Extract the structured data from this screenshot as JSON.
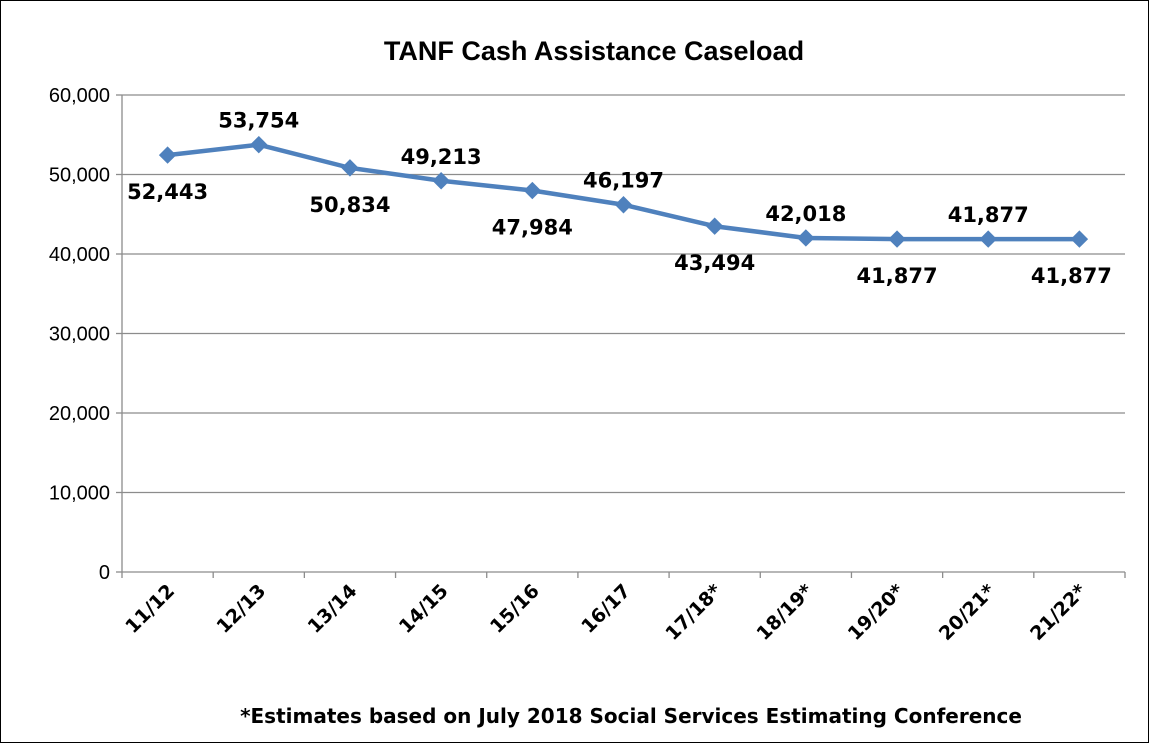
{
  "chart_data": {
    "type": "line",
    "title": "TANF Cash Assistance Caseload",
    "categories": [
      "11/12",
      "12/13",
      "13/14",
      "14/15",
      "15/16",
      "16/17",
      "17/18*",
      "18/19*",
      "19/20*",
      "20/21*",
      "21/22*"
    ],
    "series": [
      {
        "values": [
          52443,
          53754,
          50834,
          49213,
          47984,
          46197,
          43494,
          42018,
          41877,
          41877,
          41877
        ],
        "labels": [
          "52,443",
          "53,754",
          "50,834",
          "49,213",
          "47,984",
          "46,197",
          "43,494",
          "42,018",
          "41,877",
          "41,877",
          "41,877"
        ],
        "color": "#4f81bd",
        "marker": "diamond"
      }
    ],
    "yticks": [
      "0",
      "10,000",
      "20,000",
      "30,000",
      "40,000",
      "50,000",
      "60,000"
    ],
    "ylim": [
      0,
      60000
    ],
    "grid": true,
    "footnote": "*Estimates based on July 2018 Social Services Estimating Conference"
  }
}
